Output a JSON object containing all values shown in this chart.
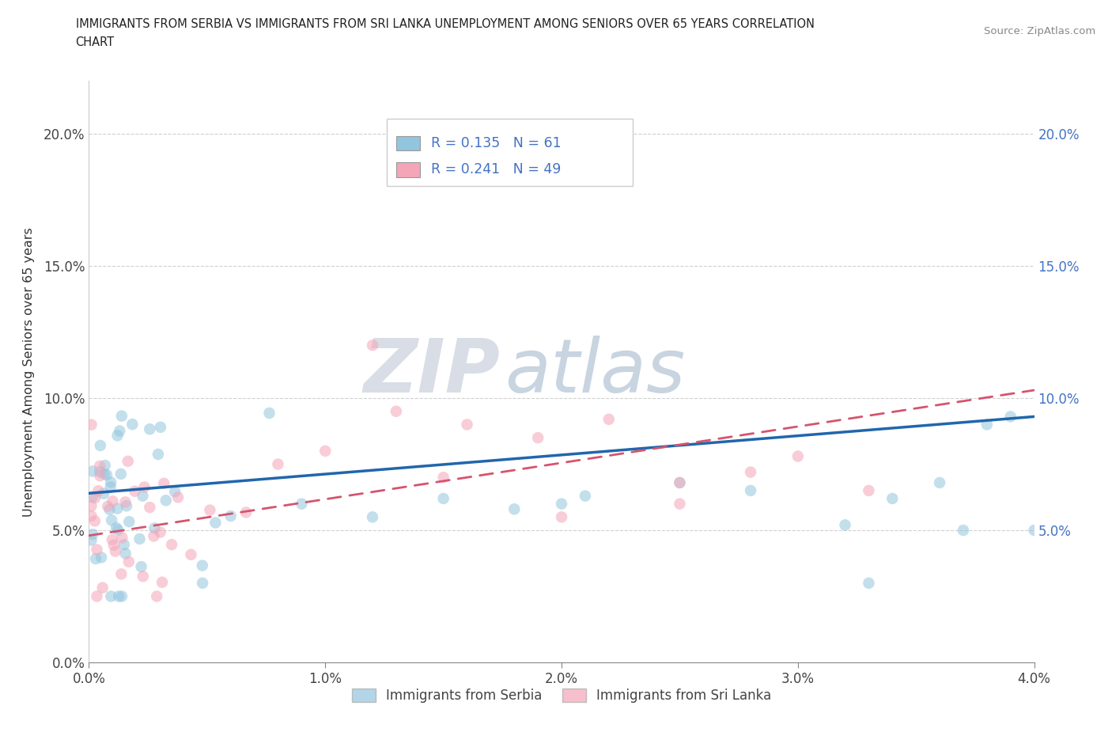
{
  "title_line1": "IMMIGRANTS FROM SERBIA VS IMMIGRANTS FROM SRI LANKA UNEMPLOYMENT AMONG SENIORS OVER 65 YEARS CORRELATION",
  "title_line2": "CHART",
  "source_text": "Source: ZipAtlas.com",
  "ylabel": "Unemployment Among Seniors over 65 years",
  "xlim": [
    0.0,
    0.04
  ],
  "ylim": [
    0.0,
    0.22
  ],
  "yticks": [
    0.0,
    0.05,
    0.1,
    0.15,
    0.2
  ],
  "ytick_labels_left": [
    "0.0%",
    "5.0%",
    "10.0%",
    "15.0%",
    "20.0%"
  ],
  "ytick_labels_right": [
    "",
    "5.0%",
    "10.0%",
    "15.0%",
    "20.0%"
  ],
  "xticks": [
    0.0,
    0.01,
    0.02,
    0.03,
    0.04
  ],
  "xtick_labels": [
    "0.0%",
    "1.0%",
    "2.0%",
    "3.0%",
    "4.0%"
  ],
  "serbia_color": "#92c5de",
  "sri_lanka_color": "#f4a5b8",
  "serbia_R": 0.135,
  "serbia_N": 61,
  "sri_lanka_R": 0.241,
  "sri_lanka_N": 49,
  "serbia_line_color": "#2166ac",
  "sri_lanka_line_color": "#d6546e",
  "watermark_zip": "ZIP",
  "watermark_atlas": "atlas",
  "legend_label_1": "Immigrants from Serbia",
  "legend_label_2": "Immigrants from Sri Lanka"
}
